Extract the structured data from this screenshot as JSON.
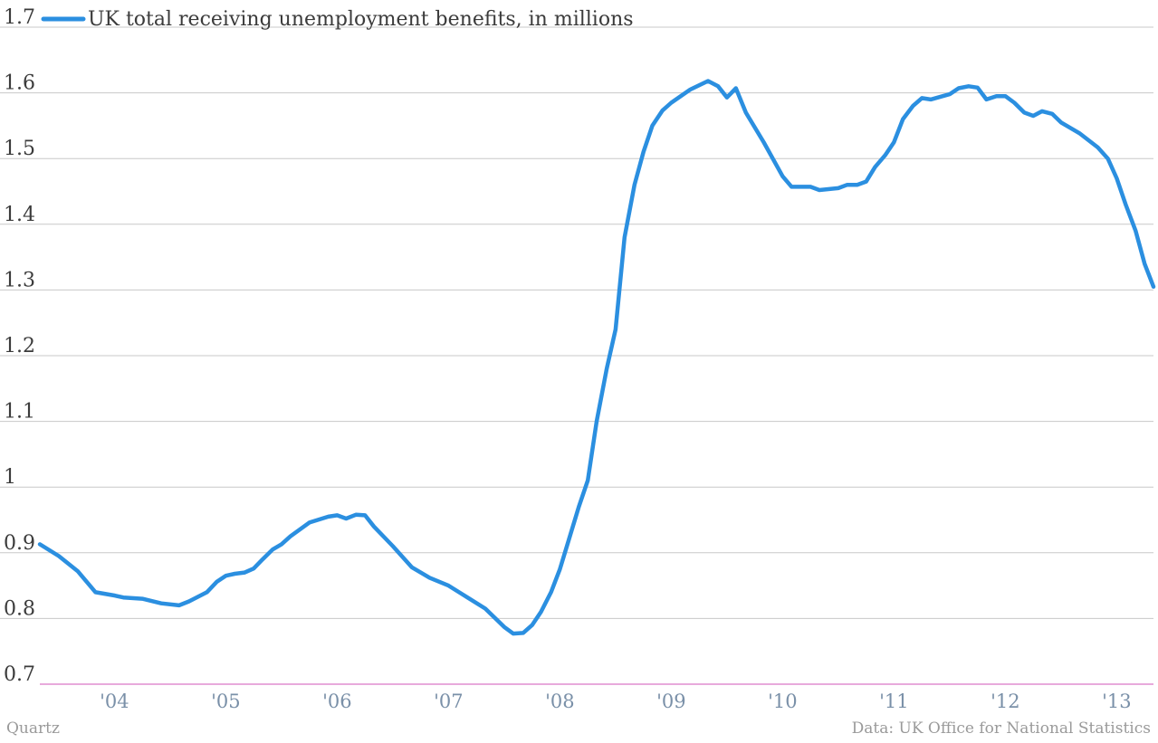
{
  "chart_data": {
    "type": "line",
    "title": "",
    "xlabel": "",
    "ylabel": "",
    "ylim": [
      0.7,
      1.7
    ],
    "xlim": [
      2003.33,
      2013.33
    ],
    "y_ticks": [
      0.7,
      0.8,
      0.9,
      1.0,
      1.1,
      1.2,
      1.3,
      1.4,
      1.5,
      1.6,
      1.7
    ],
    "y_tick_labels": [
      "0.7",
      "0.8",
      "0.9",
      "1",
      "1.1",
      "1.2",
      "1.3",
      "1.4",
      "1.5",
      "1.6",
      "1.7"
    ],
    "x_ticks": [
      2004,
      2005,
      2006,
      2007,
      2008,
      2009,
      2010,
      2011,
      2012,
      2013
    ],
    "x_tick_labels": [
      "'04",
      "'05",
      "'06",
      "'07",
      "'08",
      "'09",
      "'10",
      "'11",
      "'12",
      "'13"
    ],
    "grid": "horizontal",
    "legend": "top-left",
    "series": [
      {
        "name": "UK total receiving unemployment benefits, in millions",
        "color": "#2b8fe0",
        "x": [
          2003.33,
          2003.5,
          2003.67,
          2003.83,
          2004.0,
          2004.08,
          2004.25,
          2004.42,
          2004.58,
          2004.67,
          2004.83,
          2004.92,
          2005.0,
          2005.08,
          2005.17,
          2005.25,
          2005.33,
          2005.42,
          2005.5,
          2005.58,
          2005.75,
          2005.92,
          2006.0,
          2006.08,
          2006.17,
          2006.25,
          2006.33,
          2006.5,
          2006.67,
          2006.83,
          2007.0,
          2007.17,
          2007.33,
          2007.5,
          2007.58,
          2007.67,
          2007.75,
          2007.83,
          2007.92,
          2008.0,
          2008.08,
          2008.17,
          2008.25,
          2008.33,
          2008.42,
          2008.5,
          2008.58,
          2008.67,
          2008.75,
          2008.83,
          2008.92,
          2009.0,
          2009.17,
          2009.33,
          2009.42,
          2009.5,
          2009.58,
          2009.67,
          2009.83,
          2010.0,
          2010.08,
          2010.25,
          2010.33,
          2010.5,
          2010.58,
          2010.67,
          2010.75,
          2010.83,
          2010.92,
          2011.0,
          2011.08,
          2011.17,
          2011.25,
          2011.33,
          2011.5,
          2011.58,
          2011.67,
          2011.75,
          2011.83,
          2011.92,
          2012.0,
          2012.08,
          2012.17,
          2012.25,
          2012.33,
          2012.42,
          2012.5,
          2012.67,
          2012.83,
          2012.92,
          2013.0,
          2013.08,
          2013.17,
          2013.25,
          2013.33
        ],
        "values": [
          0.913,
          0.895,
          0.872,
          0.84,
          0.835,
          0.832,
          0.83,
          0.823,
          0.82,
          0.826,
          0.84,
          0.856,
          0.865,
          0.868,
          0.87,
          0.876,
          0.89,
          0.905,
          0.913,
          0.925,
          0.946,
          0.955,
          0.957,
          0.952,
          0.958,
          0.957,
          0.94,
          0.91,
          0.878,
          0.862,
          0.85,
          0.832,
          0.815,
          0.787,
          0.777,
          0.778,
          0.79,
          0.81,
          0.84,
          0.875,
          0.92,
          0.97,
          1.01,
          1.1,
          1.18,
          1.24,
          1.38,
          1.46,
          1.51,
          1.55,
          1.573,
          1.585,
          1.605,
          1.618,
          1.61,
          1.593,
          1.607,
          1.57,
          1.525,
          1.473,
          1.457,
          1.457,
          1.452,
          1.455,
          1.46,
          1.46,
          1.465,
          1.487,
          1.505,
          1.525,
          1.56,
          1.58,
          1.592,
          1.59,
          1.598,
          1.607,
          1.61,
          1.608,
          1.59,
          1.595,
          1.595,
          1.585,
          1.57,
          1.565,
          1.572,
          1.568,
          1.555,
          1.538,
          1.517,
          1.5,
          1.47,
          1.43,
          1.39,
          1.34,
          1.305
        ]
      }
    ]
  },
  "footer": {
    "source_left": "Quartz",
    "source_right": "Data: UK Office for National Statistics"
  }
}
